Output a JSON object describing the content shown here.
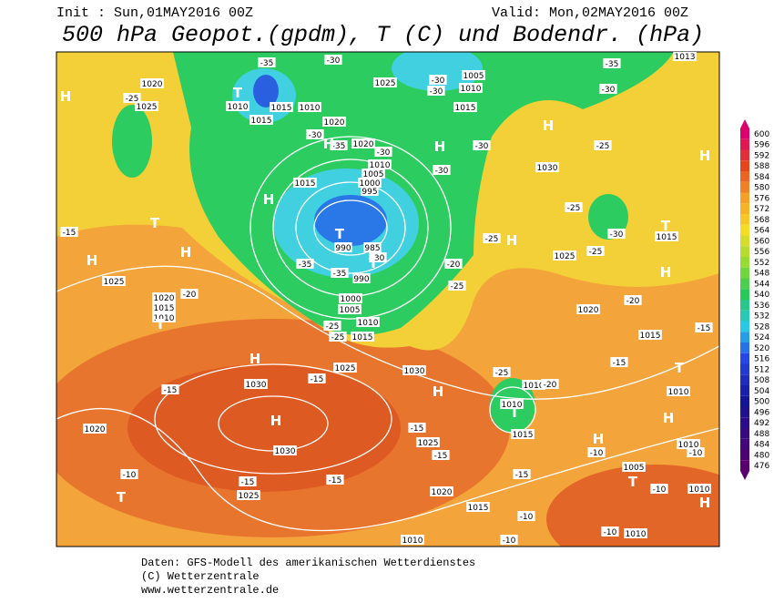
{
  "header": {
    "init": "Init : Sun,01MAY2016 00Z",
    "valid": "Valid: Mon,02MAY2016 00Z",
    "title": "500 hPa Geopot.(gpdm), T (C) und Bodendr. (hPa)"
  },
  "colorbar": {
    "ticks": [
      600,
      596,
      592,
      588,
      584,
      580,
      576,
      572,
      568,
      564,
      560,
      556,
      552,
      548,
      544,
      540,
      536,
      532,
      528,
      524,
      520,
      516,
      512,
      508,
      504,
      500,
      496,
      492,
      488,
      484,
      480,
      476
    ]
  },
  "map": {
    "labels": [
      "1020",
      "1025",
      "1010",
      "1015",
      "1015",
      "1010",
      "1025",
      "1020",
      "1020",
      "1010",
      "1005",
      "1000",
      "995",
      "990",
      "985",
      "990",
      "1000",
      "1005",
      "1010",
      "1015",
      "1025",
      "1015",
      "1005",
      "1010",
      "1015",
      "1030",
      "1025",
      "1020",
      "1015",
      "1010",
      "1030",
      "1030",
      "1030",
      "1020",
      "1020",
      "1015",
      "1010",
      "1025",
      "1010",
      "1010",
      "1015",
      "1025",
      "1020",
      "1015",
      "1010",
      "1025",
      "1005",
      "1010",
      "1010",
      "1010",
      "1015",
      "1013",
      "-25",
      "-35",
      "-30",
      "-30",
      "-35",
      "-30",
      "-35",
      "-35",
      "-30",
      "-25",
      "-25",
      "-30",
      "-30",
      "-30",
      "-30",
      "-35",
      "-30",
      "-25",
      "-25",
      "-30",
      "-25",
      "-25",
      "-20",
      "-25",
      "-20",
      "-15",
      "-20",
      "-15",
      "-15",
      "-25",
      "-20",
      "-15",
      "-15",
      "-15",
      "-15",
      "-10",
      "-15",
      "-15",
      "-15",
      "-10",
      "-10",
      "-10",
      "-10",
      "-10",
      "-10",
      "H",
      "H",
      "T",
      "H",
      "H",
      "H",
      "T",
      "T",
      "H",
      "T",
      "H",
      "T",
      "H",
      "H",
      "T",
      "H",
      "T",
      "H",
      "H",
      "T",
      "H",
      "T",
      "H",
      "H",
      "T",
      "H"
    ]
  },
  "footer": {
    "lines": [
      "Daten: GFS-Modell des amerikanischen Wetterdienstes",
      "(C) Wetterzentrale",
      "www.wetterzentrale.de"
    ]
  }
}
